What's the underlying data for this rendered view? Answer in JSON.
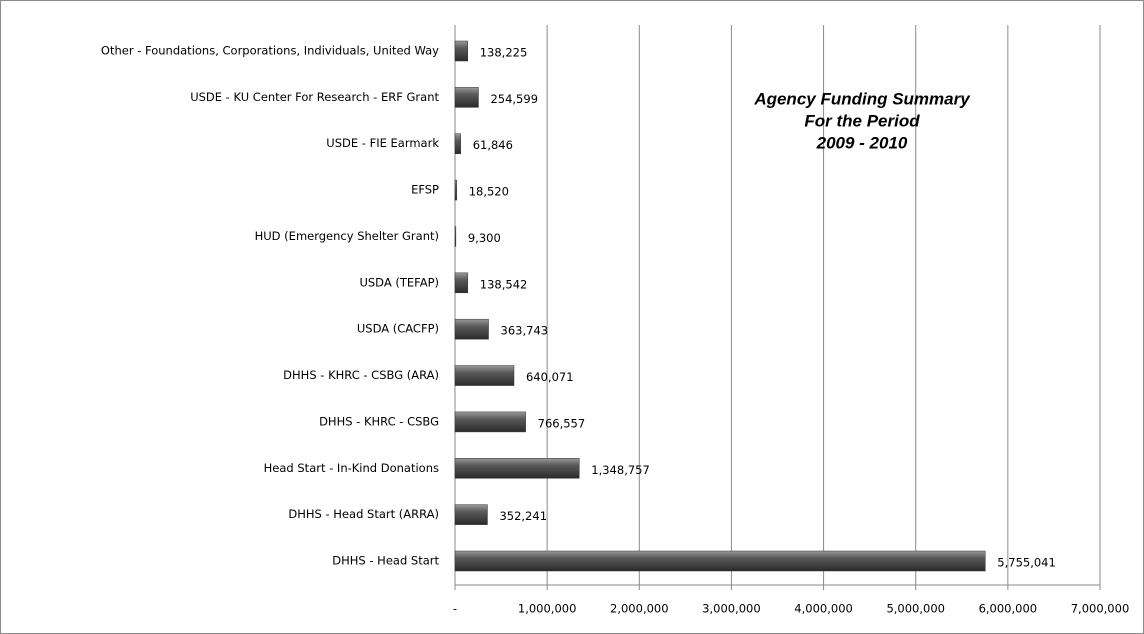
{
  "chart_data": {
    "type": "bar",
    "orientation": "horizontal",
    "title": [
      "Agency Funding Summary",
      "For the Period",
      "2009 - 2010"
    ],
    "categories": [
      "Other - Foundations, Corporations, Individuals, United Way",
      "USDE - KU Center For Research - ERF Grant",
      "USDE - FIE Earmark",
      "EFSP",
      "HUD (Emergency Shelter Grant)",
      "USDA (TEFAP)",
      "USDA (CACFP)",
      "DHHS - KHRC - CSBG (ARA)",
      "DHHS - KHRC - CSBG",
      "Head Start - In-Kind Donations",
      "DHHS - Head Start (ARRA)",
      "DHHS - Head Start"
    ],
    "values": [
      138225,
      254599,
      61846,
      18520,
      9300,
      138542,
      363743,
      640071,
      766557,
      1348757,
      352241,
      5755041
    ],
    "value_labels": [
      "138,225",
      "254,599",
      "61,846",
      "18,520",
      "9,300",
      "138,542",
      "363,743",
      "640,071",
      "766,557",
      "1,348,757",
      "352,241",
      "5,755,041"
    ],
    "color": "#4a4a4a",
    "xlim": [
      0,
      7000000
    ],
    "xticks": [
      {
        "value": 0,
        "label": "-"
      },
      {
        "value": 1000000,
        "label": "1,000,000"
      },
      {
        "value": 2000000,
        "label": "2,000,000"
      },
      {
        "value": 3000000,
        "label": "3,000,000"
      },
      {
        "value": 4000000,
        "label": "4,000,000"
      },
      {
        "value": 5000000,
        "label": "5,000,000"
      },
      {
        "value": 6000000,
        "label": "6,000,000"
      },
      {
        "value": 7000000,
        "label": "7,000,000"
      }
    ],
    "grid": true
  }
}
